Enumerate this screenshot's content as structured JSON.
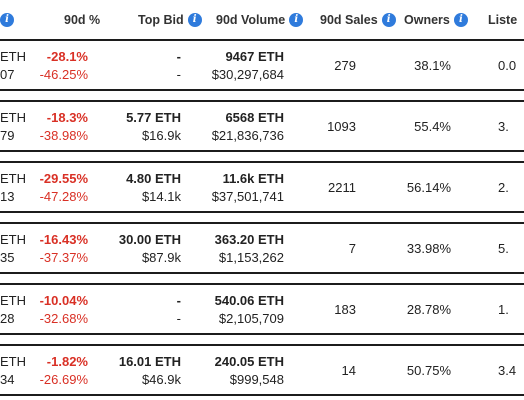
{
  "header": {
    "cut_label": "",
    "change_label": "90d %",
    "top_bid_label": "Top Bid",
    "volume_label": "90d Volume",
    "sales_label": "90d Sales",
    "owners_label": "Owners",
    "listed_label": "Liste",
    "info_glyph": "i"
  },
  "rows": [
    {
      "price_top": "ETH",
      "price_bottom": "07",
      "change_pct": "-28.1%",
      "change_sub": "-46.25%",
      "bid_eth": "-",
      "bid_usd": "-",
      "vol_eth": "9467 ETH",
      "vol_usd": "$30,297,684",
      "sales": "279",
      "owners": "38.1%",
      "listed": "0.0"
    },
    {
      "price_top": "ETH",
      "price_bottom": "79",
      "change_pct": "-18.3%",
      "change_sub": "-38.98%",
      "bid_eth": "5.77 ETH",
      "bid_usd": "$16.9k",
      "vol_eth": "6568 ETH",
      "vol_usd": "$21,836,736",
      "sales": "1093",
      "owners": "55.4%",
      "listed": "3."
    },
    {
      "price_top": "ETH",
      "price_bottom": "13",
      "change_pct": "-29.55%",
      "change_sub": "-47.28%",
      "bid_eth": "4.80 ETH",
      "bid_usd": "$14.1k",
      "vol_eth": "11.6k ETH",
      "vol_usd": "$37,501,741",
      "sales": "2211",
      "owners": "56.14%",
      "listed": "2."
    },
    {
      "price_top": "ETH",
      "price_bottom": "35",
      "change_pct": "-16.43%",
      "change_sub": "-37.37%",
      "bid_eth": "30.00 ETH",
      "bid_usd": "$87.9k",
      "vol_eth": "363.20 ETH",
      "vol_usd": "$1,153,262",
      "sales": "7",
      "owners": "33.98%",
      "listed": "5."
    },
    {
      "price_top": "ETH",
      "price_bottom": "28",
      "change_pct": "-10.04%",
      "change_sub": "-32.68%",
      "bid_eth": "-",
      "bid_usd": "-",
      "vol_eth": "540.06 ETH",
      "vol_usd": "$2,105,709",
      "sales": "183",
      "owners": "28.78%",
      "listed": "1."
    },
    {
      "price_top": "ETH",
      "price_bottom": "34",
      "change_pct": "-1.82%",
      "change_sub": "-26.69%",
      "bid_eth": "16.01 ETH",
      "bid_usd": "$46.9k",
      "vol_eth": "240.05 ETH",
      "vol_usd": "$999,548",
      "sales": "14",
      "owners": "50.75%",
      "listed": "3.4"
    }
  ],
  "colors": {
    "negative": "#d93025",
    "info_icon": "#2f7bdc",
    "border": "#1c1c1c"
  }
}
